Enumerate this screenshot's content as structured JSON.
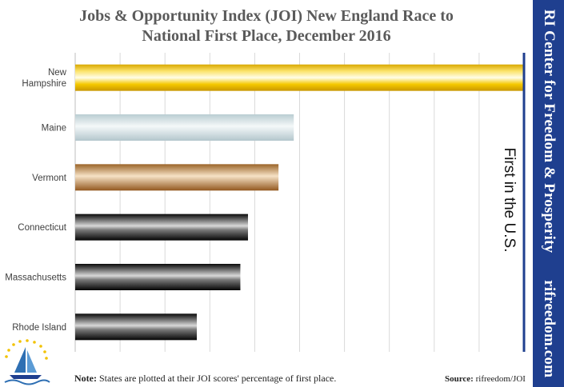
{
  "title_line1": "Jobs & Opportunity Index (JOI) New England Race to",
  "title_line2": "National First Place, December 2016",
  "sidebar": {
    "org": "RI Center for Freedom & Prosperity",
    "site": "rifreedom.com"
  },
  "footer": {
    "note_label": "Note:",
    "note_text": " States are plotted at their JOI scores' percentage of first place.",
    "source_label": "Source:",
    "source_text": " rifreedom/JOI"
  },
  "chart_data": {
    "type": "bar",
    "orientation": "horizontal",
    "categories": [
      "New Hampshire",
      "Maine",
      "Vermont",
      "Connecticut",
      "Massachusetts",
      "Rhode Island"
    ],
    "values": [
      100,
      48.7,
      45.3,
      38.5,
      36.8,
      27.1
    ],
    "xlim": [
      0,
      100
    ],
    "grid": true,
    "reference_line": {
      "value": 100,
      "label": "First in the U.S."
    },
    "bar_styles": [
      "gold",
      "silver",
      "bronze",
      "black",
      "black",
      "black"
    ]
  },
  "colors": {
    "sidebar": "#1f3f8f",
    "reference_line": "#1f3f8f",
    "title": "#5a5a5a",
    "grid": "#d9d9d9"
  }
}
